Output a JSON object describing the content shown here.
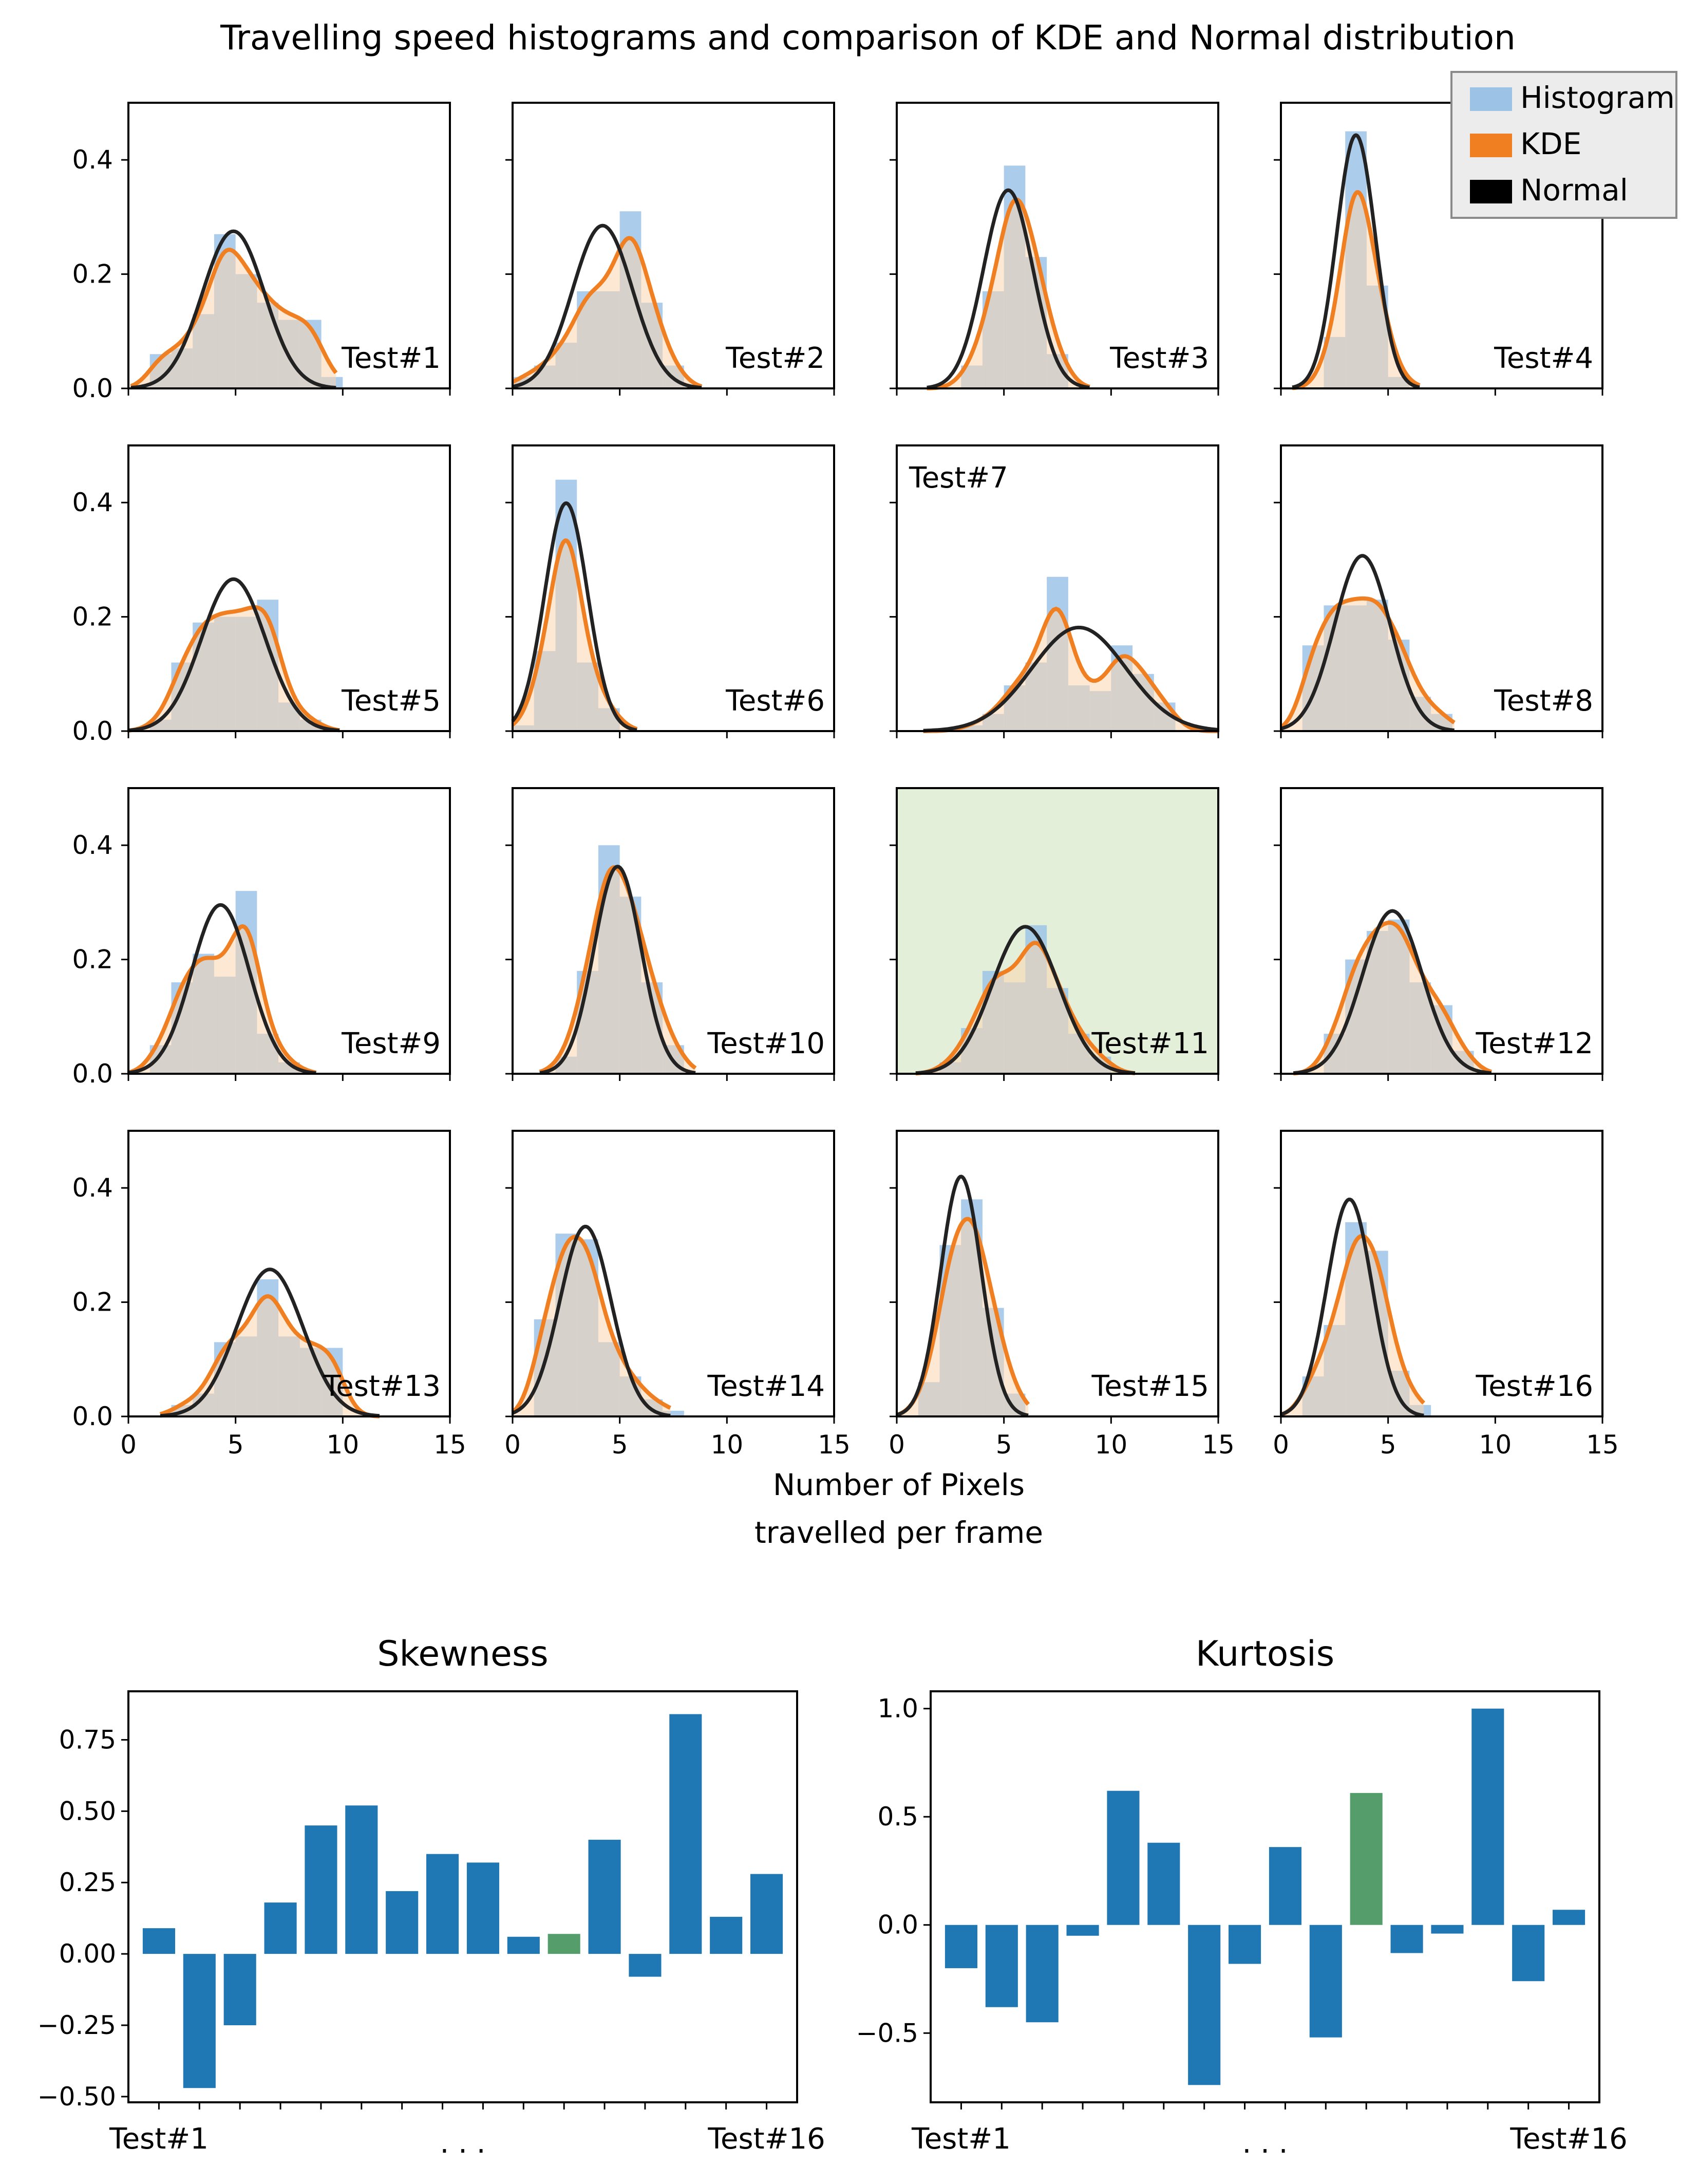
{
  "figure_title": "Travelling speed histograms and comparison of KDE and Normal distribution",
  "legend": [
    {
      "label": "Histogram",
      "color": "#9cc3e6"
    },
    {
      "label": "KDE",
      "color": "#f07f21"
    },
    {
      "label": "Normal",
      "color": "#000000"
    }
  ],
  "x_axis_label_line1": "Number of Pixels",
  "x_axis_label_line2": "travelled per frame",
  "colors": {
    "hist": "#9cc3e6",
    "kde_fill": "#fcd5b0",
    "overlap": "#a9b5c0",
    "kde_line": "#f07f21",
    "normal_line": "#222222",
    "bar": "#1f77b4",
    "highlight_bar": "#559e6c",
    "highlight_bg": "#e4efd9"
  },
  "chart_data": [
    {
      "type": "histogram-grid",
      "title": "Travelling speed histograms and comparison of KDE and Normal distribution",
      "xlabel": "Number of Pixels travelled per frame",
      "xlim": [
        0,
        15
      ],
      "ylim": [
        0,
        0.5
      ],
      "xticks": [
        "0",
        "5",
        "10",
        "15"
      ],
      "yticks": [
        "0.0",
        "0.2",
        "0.4"
      ],
      "panels": [
        {
          "label": "Test#1",
          "mean": 4.9,
          "sd": 1.45,
          "bins": [
            [
              1,
              2,
              0.06
            ],
            [
              2,
              3,
              0.07
            ],
            [
              3,
              4,
              0.13
            ],
            [
              4,
              5,
              0.27
            ],
            [
              5,
              6,
              0.2
            ],
            [
              6,
              7,
              0.15
            ],
            [
              7,
              8,
              0.12
            ],
            [
              8,
              9,
              0.12
            ],
            [
              9,
              10,
              0.02
            ]
          ]
        },
        {
          "label": "Test#2",
          "mean": 4.2,
          "sd": 1.4,
          "bins": [
            [
              0,
              1,
              0.02
            ],
            [
              1,
              2,
              0.04
            ],
            [
              2,
              3,
              0.08
            ],
            [
              3,
              4,
              0.17
            ],
            [
              4,
              5,
              0.17
            ],
            [
              5,
              6,
              0.31
            ],
            [
              6,
              7,
              0.15
            ],
            [
              7,
              8,
              0.04
            ]
          ]
        },
        {
          "label": "Test#3",
          "mean": 5.2,
          "sd": 1.15,
          "bins": [
            [
              3,
              4,
              0.04
            ],
            [
              4,
              5,
              0.17
            ],
            [
              5,
              6,
              0.39
            ],
            [
              6,
              7,
              0.23
            ],
            [
              7,
              8,
              0.06
            ]
          ]
        },
        {
          "label": "Test#4",
          "mean": 3.5,
          "sd": 0.9,
          "bins": [
            [
              2,
              3,
              0.09
            ],
            [
              3,
              4,
              0.45
            ],
            [
              4,
              5,
              0.18
            ],
            [
              5,
              6,
              0.02
            ]
          ]
        },
        {
          "label": "Test#5",
          "mean": 4.9,
          "sd": 1.5,
          "bins": [
            [
              1,
              2,
              0.02
            ],
            [
              2,
              3,
              0.12
            ],
            [
              3,
              4,
              0.19
            ],
            [
              4,
              5,
              0.2
            ],
            [
              5,
              6,
              0.2
            ],
            [
              6,
              7,
              0.23
            ],
            [
              7,
              8,
              0.05
            ],
            [
              8,
              9,
              0.02
            ]
          ]
        },
        {
          "label": "Test#6",
          "mean": 2.5,
          "sd": 1.0,
          "bins": [
            [
              0,
              1,
              0.01
            ],
            [
              1,
              2,
              0.14
            ],
            [
              2,
              3,
              0.44
            ],
            [
              3,
              4,
              0.12
            ],
            [
              4,
              5,
              0.04
            ]
          ]
        },
        {
          "label": "Test#7",
          "mean": 8.5,
          "sd": 2.2,
          "bins": [
            [
              3,
              4,
              0.01
            ],
            [
              4,
              5,
              0.03
            ],
            [
              5,
              6,
              0.08
            ],
            [
              6,
              7,
              0.12
            ],
            [
              7,
              8,
              0.27
            ],
            [
              8,
              9,
              0.08
            ],
            [
              9,
              10,
              0.07
            ],
            [
              10,
              11,
              0.15
            ],
            [
              11,
              12,
              0.1
            ],
            [
              12,
              13,
              0.05
            ]
          ]
        },
        {
          "label": "Test#8",
          "mean": 3.8,
          "sd": 1.3,
          "bins": [
            [
              1,
              2,
              0.15
            ],
            [
              2,
              3,
              0.22
            ],
            [
              3,
              4,
              0.22
            ],
            [
              4,
              5,
              0.23
            ],
            [
              5,
              6,
              0.16
            ],
            [
              6,
              7,
              0.06
            ],
            [
              7,
              8,
              0.03
            ]
          ]
        },
        {
          "label": "Test#9",
          "mean": 4.3,
          "sd": 1.35,
          "bins": [
            [
              1,
              2,
              0.05
            ],
            [
              2,
              3,
              0.16
            ],
            [
              3,
              4,
              0.21
            ],
            [
              4,
              5,
              0.17
            ],
            [
              5,
              6,
              0.32
            ],
            [
              6,
              7,
              0.07
            ],
            [
              7,
              8,
              0.02
            ]
          ]
        },
        {
          "label": "Test#10",
          "mean": 4.9,
          "sd": 1.1,
          "bins": [
            [
              2,
              3,
              0.03
            ],
            [
              3,
              4,
              0.18
            ],
            [
              4,
              5,
              0.4
            ],
            [
              5,
              6,
              0.31
            ],
            [
              6,
              7,
              0.16
            ],
            [
              7,
              8,
              0.05
            ]
          ]
        },
        {
          "label": "Test#11",
          "mean": 6.0,
          "sd": 1.55,
          "highlight": true,
          "bins": [
            [
              2,
              3,
              0.02
            ],
            [
              3,
              4,
              0.08
            ],
            [
              4,
              5,
              0.18
            ],
            [
              5,
              6,
              0.16
            ],
            [
              6,
              7,
              0.26
            ],
            [
              7,
              8,
              0.15
            ],
            [
              8,
              9,
              0.07
            ],
            [
              9,
              10,
              0.03
            ]
          ]
        },
        {
          "label": "Test#12",
          "mean": 5.2,
          "sd": 1.4,
          "bins": [
            [
              2,
              3,
              0.07
            ],
            [
              3,
              4,
              0.2
            ],
            [
              4,
              5,
              0.25
            ],
            [
              5,
              6,
              0.27
            ],
            [
              6,
              7,
              0.16
            ],
            [
              7,
              8,
              0.12
            ],
            [
              8,
              9,
              0.04
            ]
          ]
        },
        {
          "label": "Test#13",
          "mean": 6.6,
          "sd": 1.55,
          "bins": [
            [
              2,
              3,
              0.02
            ],
            [
              3,
              4,
              0.04
            ],
            [
              4,
              5,
              0.13
            ],
            [
              5,
              6,
              0.14
            ],
            [
              6,
              7,
              0.24
            ],
            [
              7,
              8,
              0.14
            ],
            [
              8,
              9,
              0.12
            ],
            [
              9,
              10,
              0.12
            ]
          ]
        },
        {
          "label": "Test#14",
          "mean": 3.4,
          "sd": 1.2,
          "bins": [
            [
              1,
              2,
              0.17
            ],
            [
              2,
              3,
              0.32
            ],
            [
              3,
              4,
              0.31
            ],
            [
              4,
              5,
              0.13
            ],
            [
              5,
              6,
              0.07
            ],
            [
              6,
              7,
              0.03
            ],
            [
              7,
              8,
              0.01
            ]
          ]
        },
        {
          "label": "Test#15",
          "mean": 3.0,
          "sd": 0.95,
          "bins": [
            [
              1,
              2,
              0.06
            ],
            [
              2,
              3,
              0.3
            ],
            [
              3,
              4,
              0.38
            ],
            [
              4,
              5,
              0.19
            ],
            [
              5,
              6,
              0.04
            ]
          ]
        },
        {
          "label": "Test#16",
          "mean": 3.2,
          "sd": 1.05,
          "bins": [
            [
              1,
              2,
              0.07
            ],
            [
              2,
              3,
              0.16
            ],
            [
              3,
              4,
              0.34
            ],
            [
              4,
              5,
              0.29
            ],
            [
              5,
              6,
              0.08
            ],
            [
              6,
              7,
              0.02
            ]
          ]
        }
      ]
    },
    {
      "type": "bar",
      "title": "Skewness",
      "categories": [
        "Test#1",
        "Test#2",
        "Test#3",
        "Test#4",
        "Test#5",
        "Test#6",
        "Test#7",
        "Test#8",
        "Test#9",
        "Test#10",
        "Test#11",
        "Test#12",
        "Test#13",
        "Test#14",
        "Test#15",
        "Test#16"
      ],
      "values": [
        0.09,
        -0.47,
        -0.25,
        0.18,
        0.45,
        0.52,
        0.22,
        0.35,
        0.32,
        0.06,
        0.07,
        0.4,
        -0.08,
        0.84,
        0.13,
        0.28
      ],
      "highlight_index": 10,
      "ylim": [
        -0.52,
        0.92
      ],
      "yticks": [
        "−0.50",
        "−0.25",
        "0.00",
        "0.25",
        "0.50",
        "0.75"
      ],
      "xtick_labels": [
        "Test#1",
        ". . .",
        "Test#16"
      ]
    },
    {
      "type": "bar",
      "title": "Kurtosis",
      "categories": [
        "Test#1",
        "Test#2",
        "Test#3",
        "Test#4",
        "Test#5",
        "Test#6",
        "Test#7",
        "Test#8",
        "Test#9",
        "Test#10",
        "Test#11",
        "Test#12",
        "Test#13",
        "Test#14",
        "Test#15",
        "Test#16"
      ],
      "values": [
        -0.2,
        -0.38,
        -0.45,
        -0.05,
        0.62,
        0.38,
        -0.74,
        -0.18,
        0.36,
        -0.52,
        0.61,
        -0.13,
        -0.04,
        1.0,
        -0.26,
        0.07
      ],
      "highlight_index": 10,
      "ylim": [
        -0.82,
        1.08
      ],
      "yticks": [
        "−0.5",
        "0.0",
        "0.5",
        "1.0"
      ],
      "xtick_labels": [
        "Test#1",
        ". . .",
        "Test#16"
      ]
    }
  ]
}
